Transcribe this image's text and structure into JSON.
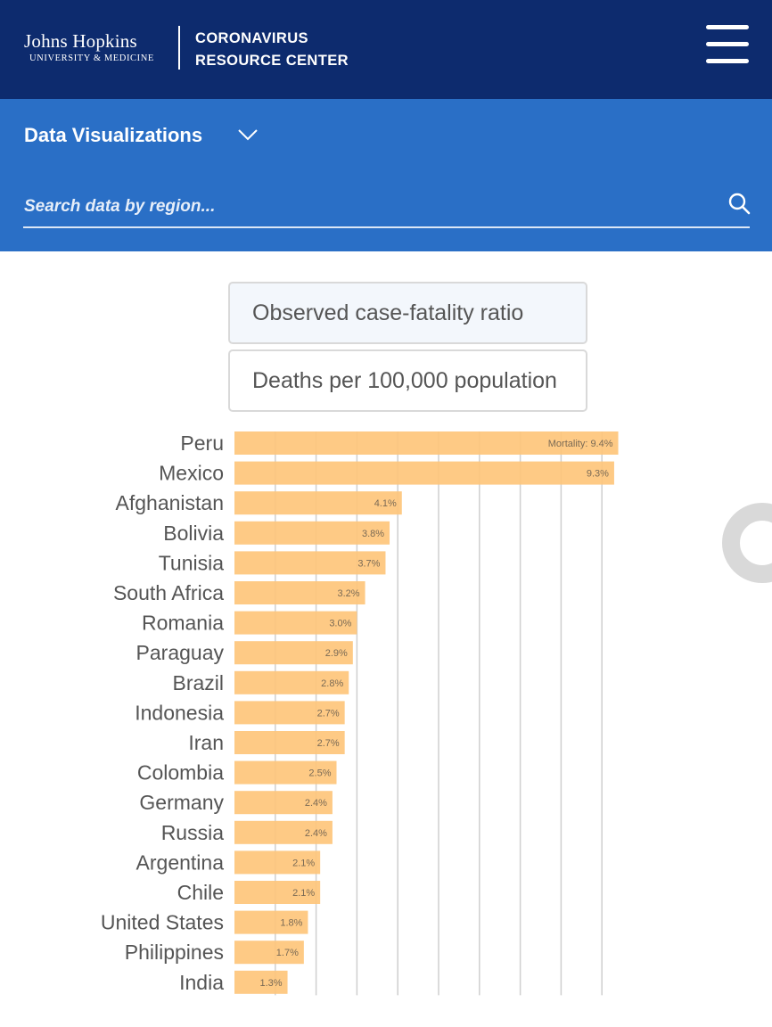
{
  "header": {
    "logo_line1": "Johns Hopkins",
    "logo_line2": "UNIVERSITY & MEDICINE",
    "title_line1": "CORONAVIRUS",
    "title_line2": "RESOURCE CENTER",
    "menu_icon": "hamburger-menu-icon"
  },
  "subnav": {
    "title": "Data Visualizations",
    "chevron_icon": "chevron-down-icon",
    "search_placeholder": "Search data by region...",
    "search_icon": "search-icon"
  },
  "toggles": [
    {
      "label": "Observed case-fatality ratio",
      "active": true
    },
    {
      "label": "Deaths per 100,000 population",
      "active": false
    }
  ],
  "colors": {
    "header_bg": "#0d2b6e",
    "subnav_bg": "#2a6fc6",
    "bar": "#fec57b",
    "grid": "#cfcfcf"
  },
  "chart_data": {
    "type": "bar",
    "orientation": "horizontal",
    "categories": [
      "Peru",
      "Mexico",
      "Afghanistan",
      "Bolivia",
      "Tunisia",
      "South Africa",
      "Romania",
      "Paraguay",
      "Brazil",
      "Indonesia",
      "Iran",
      "Colombia",
      "Germany",
      "Russia",
      "Argentina",
      "Chile",
      "United States",
      "Philippines",
      "India"
    ],
    "values": [
      9.4,
      9.3,
      4.1,
      3.8,
      3.7,
      3.2,
      3.0,
      2.9,
      2.8,
      2.7,
      2.7,
      2.5,
      2.4,
      2.4,
      2.1,
      2.1,
      1.8,
      1.7,
      1.3
    ],
    "value_labels": [
      "Mortality: 9.4%",
      "9.3%",
      "4.1%",
      "3.8%",
      "3.7%",
      "3.2%",
      "3.0%",
      "2.9%",
      "2.8%",
      "2.7%",
      "2.7%",
      "2.5%",
      "2.4%",
      "2.4%",
      "2.1%",
      "2.1%",
      "1.8%",
      "1.7%",
      "1.3%"
    ],
    "unit": "%",
    "xlim": [
      0,
      10
    ],
    "grid": true
  }
}
